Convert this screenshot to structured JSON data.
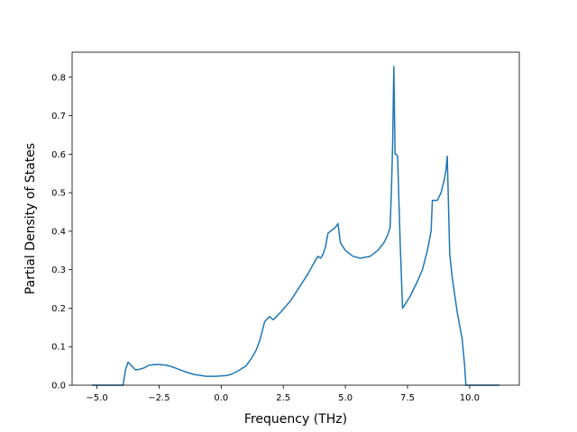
{
  "chart_data": {
    "type": "line",
    "title": "",
    "xlabel": "Frequency (THz)",
    "ylabel": "Partial Density of States",
    "xlim": [
      -6.0,
      12.0
    ],
    "ylim": [
      0.0,
      0.865
    ],
    "xticks": [
      -5.0,
      -2.5,
      0.0,
      2.5,
      5.0,
      7.5,
      10.0
    ],
    "xtick_labels": [
      "−5.0",
      "−2.5",
      "0.0",
      "2.5",
      "5.0",
      "7.5",
      "10.0"
    ],
    "yticks": [
      0.0,
      0.1,
      0.2,
      0.3,
      0.4,
      0.5,
      0.6,
      0.7,
      0.8
    ],
    "ytick_labels": [
      "0.0",
      "0.1",
      "0.2",
      "0.3",
      "0.4",
      "0.5",
      "0.6",
      "0.7",
      "0.8"
    ],
    "grid": false,
    "legend": "none",
    "series": [
      {
        "color": "#1f77b4",
        "x": [
          -5.2,
          -3.95,
          -3.85,
          -3.75,
          -3.6,
          -3.45,
          -3.3,
          -3.1,
          -2.9,
          -2.6,
          -2.2,
          -1.9,
          -1.5,
          -1.1,
          -0.6,
          -0.2,
          0.2,
          0.4,
          0.7,
          1.0,
          1.2,
          1.4,
          1.55,
          1.65,
          1.75,
          1.85,
          1.95,
          2.1,
          2.4,
          2.8,
          3.2,
          3.5,
          3.8,
          3.9,
          4.0,
          4.1,
          4.2,
          4.3,
          4.6,
          4.7,
          4.8,
          5.0,
          5.3,
          5.6,
          6.0,
          6.3,
          6.55,
          6.7,
          6.8,
          6.85,
          6.9,
          6.95,
          7.0,
          7.05,
          7.1,
          7.2,
          7.3,
          7.4,
          7.6,
          7.9,
          8.1,
          8.3,
          8.45,
          8.5,
          8.6,
          8.7,
          8.85,
          9.0,
          9.05,
          9.1,
          9.2,
          9.3,
          9.5,
          9.7,
          9.8,
          9.85,
          10.0,
          11.2
        ],
        "y": [
          0.0,
          0.0,
          0.04,
          0.06,
          0.05,
          0.04,
          0.041,
          0.045,
          0.052,
          0.054,
          0.052,
          0.046,
          0.036,
          0.028,
          0.023,
          0.023,
          0.025,
          0.028,
          0.038,
          0.05,
          0.068,
          0.09,
          0.115,
          0.14,
          0.165,
          0.172,
          0.178,
          0.17,
          0.19,
          0.22,
          0.26,
          0.29,
          0.325,
          0.335,
          0.33,
          0.34,
          0.36,
          0.395,
          0.41,
          0.42,
          0.37,
          0.35,
          0.335,
          0.33,
          0.335,
          0.35,
          0.37,
          0.39,
          0.41,
          0.5,
          0.62,
          0.828,
          0.6,
          0.6,
          0.595,
          0.38,
          0.2,
          0.21,
          0.23,
          0.27,
          0.3,
          0.35,
          0.4,
          0.48,
          0.48,
          0.48,
          0.5,
          0.54,
          0.56,
          0.595,
          0.34,
          0.28,
          0.19,
          0.12,
          0.05,
          0.0,
          0.0,
          0.0
        ]
      }
    ]
  }
}
